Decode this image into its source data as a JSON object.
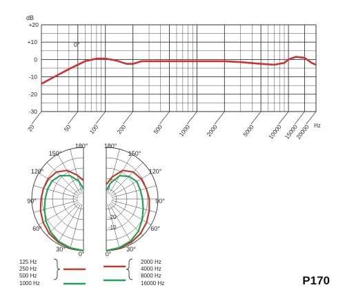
{
  "product": {
    "model": "P170"
  },
  "colors": {
    "grid": "#333333",
    "response": "#d12f2f",
    "red_series": "#c0392b",
    "green_series": "#20a050",
    "text": "#222222"
  },
  "chart_data": [
    {
      "type": "line",
      "title": "",
      "xlabel": "Hz",
      "ylabel": "dB",
      "x_scale": "log",
      "xlim": [
        20,
        20000
      ],
      "ylim": [
        -30,
        20
      ],
      "grid": true,
      "y_ticks": [
        "+20",
        "+10",
        "0",
        "-10",
        "-20",
        "-30"
      ],
      "y_tick_values": [
        20,
        10,
        0,
        -10,
        -20,
        -30
      ],
      "x_ticks": [
        "20",
        "50",
        "100",
        "200",
        "500",
        "1000",
        "2000",
        "5000",
        "10000",
        "15000",
        "20000"
      ],
      "x_tick_values": [
        20,
        50,
        100,
        200,
        500,
        1000,
        2000,
        5000,
        10000,
        15000,
        20000
      ],
      "annotation": "0°",
      "series": [
        {
          "x": [
            20,
            30,
            40,
            60,
            80,
            100,
            130,
            170,
            200,
            250,
            300,
            500,
            1000,
            2000,
            3000,
            5000,
            7000,
            9000,
            10000,
            12000,
            15000,
            18000,
            20000
          ],
          "y": [
            -14,
            -9,
            -5.5,
            -1,
            0.5,
            0.5,
            -0.5,
            -2.5,
            -2.5,
            -1,
            -1,
            -1,
            -1,
            -1,
            -1.5,
            -2.5,
            -3,
            -2,
            0,
            1.5,
            1,
            -2,
            -3
          ]
        }
      ]
    },
    {
      "type": "polar",
      "title": "",
      "angle_labels": {
        "a0": "0°",
        "a30": "30°",
        "a60": "60°",
        "a90": "90°",
        "a120": "120°",
        "a150": "150°",
        "a180": "180°"
      },
      "radial_labels": [
        "-10",
        "-20"
      ],
      "rlim": [
        -25,
        0
      ],
      "legend_left": {
        "labels": [
          "125 Hz",
          "250 Hz",
          "500 Hz",
          "1000 Hz"
        ]
      },
      "legend_right": {
        "labels": [
          "2000 Hz",
          "4000 Hz",
          "8000 Hz",
          "16000 Hz"
        ]
      },
      "series": [
        {
          "name": "125 Hz 250 Hz 500 Hz",
          "side": "left",
          "angles": [
            0,
            15,
            30,
            45,
            60,
            75,
            90,
            105,
            120,
            135,
            150,
            165,
            180
          ],
          "db": [
            0,
            -0.3,
            -0.8,
            -1.5,
            -2.5,
            -3.5,
            -4.5,
            -5,
            -5.5,
            -6.5,
            -9,
            -13,
            -16
          ]
        },
        {
          "name": "1000 Hz",
          "side": "left",
          "angles": [
            0,
            15,
            30,
            45,
            60,
            75,
            90,
            105,
            120,
            135,
            150,
            165,
            180
          ],
          "db": [
            0,
            -0.5,
            -1.2,
            -2.5,
            -4,
            -5.5,
            -6.5,
            -7,
            -7.5,
            -9,
            -12,
            -16,
            -20
          ]
        },
        {
          "name": "2000 Hz 4000 Hz 8000 Hz",
          "side": "right",
          "angles": [
            0,
            15,
            30,
            45,
            60,
            75,
            90,
            105,
            120,
            135,
            150,
            165,
            180
          ],
          "db": [
            0,
            -0.3,
            -0.8,
            -1.5,
            -2.5,
            -3.5,
            -4.2,
            -5,
            -5.5,
            -6.5,
            -9,
            -14,
            -18
          ]
        },
        {
          "name": "16000 Hz",
          "side": "right",
          "angles": [
            0,
            15,
            30,
            45,
            60,
            75,
            90,
            105,
            120,
            135,
            150,
            165,
            180
          ],
          "db": [
            0,
            -0.6,
            -1.5,
            -3,
            -5,
            -6.5,
            -7.5,
            -8,
            -8,
            -9.5,
            -12,
            -17,
            -21
          ]
        }
      ]
    }
  ]
}
